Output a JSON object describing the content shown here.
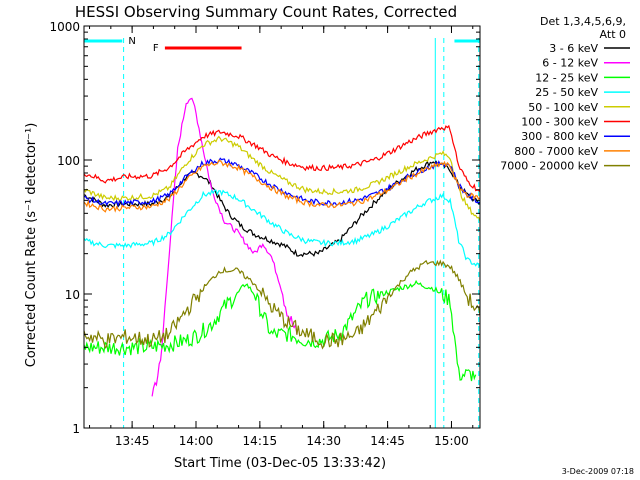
{
  "chart_data": {
    "type": "line",
    "title": "HESSI Observing Summary Count Rates, Corrected",
    "xlabel": "Start Time (03-Dec-05 13:33:42)",
    "ylabel": "Corrected Count Rate (s⁻¹ detector⁻¹)",
    "ylog": true,
    "xlim_minutes": [
      0,
      93
    ],
    "ylim": [
      1,
      1000
    ],
    "xticks": [
      {
        "label": "13:45",
        "minute": 11.3
      },
      {
        "label": "14:00",
        "minute": 26.3
      },
      {
        "label": "14:15",
        "minute": 41.3
      },
      {
        "label": "14:30",
        "minute": 56.3
      },
      {
        "label": "14:45",
        "minute": 71.3
      },
      {
        "label": "15:00",
        "minute": 86.3
      }
    ],
    "yticks": [
      {
        "label": "1",
        "value": 1
      },
      {
        "label": "10",
        "value": 10
      },
      {
        "label": "100",
        "value": 100
      },
      {
        "label": "1000",
        "value": 1000
      }
    ],
    "legend_title": [
      "Det 1,3,4,5,6,9,",
      "Att 0"
    ],
    "legend_position": "right",
    "series": [
      {
        "name": "3 - 6 keV",
        "color": "#000000",
        "points": [
          [
            0,
            55
          ],
          [
            5,
            46
          ],
          [
            10,
            47
          ],
          [
            16,
            47
          ],
          [
            20,
            53
          ],
          [
            24,
            75
          ],
          [
            26,
            80
          ],
          [
            28,
            75
          ],
          [
            30,
            65
          ],
          [
            32,
            50
          ],
          [
            34,
            40
          ],
          [
            37,
            32
          ],
          [
            40,
            28
          ],
          [
            44,
            25
          ],
          [
            47,
            23
          ],
          [
            50,
            20
          ],
          [
            55,
            20
          ],
          [
            60,
            25
          ],
          [
            65,
            38
          ],
          [
            70,
            55
          ],
          [
            74,
            70
          ],
          [
            78,
            85
          ],
          [
            82,
            98
          ],
          [
            86,
            85
          ],
          [
            88,
            65
          ],
          [
            90,
            55
          ],
          [
            93,
            47
          ]
        ]
      },
      {
        "name": "6 - 12 keV",
        "color": "#ff00ff",
        "points": [
          [
            16,
            1.8
          ],
          [
            18,
            3
          ],
          [
            20,
            20
          ],
          [
            22,
            120
          ],
          [
            24,
            270
          ],
          [
            25,
            290
          ],
          [
            26,
            250
          ],
          [
            28,
            120
          ],
          [
            30,
            60
          ],
          [
            33,
            35
          ],
          [
            36,
            29
          ],
          [
            38,
            24
          ],
          [
            40,
            20
          ],
          [
            42,
            24
          ],
          [
            44,
            19
          ],
          [
            46,
            12
          ],
          [
            48,
            7
          ],
          [
            50,
            5
          ]
        ]
      },
      {
        "name": "12 - 25 keV",
        "color": "#00ff00",
        "points": [
          [
            0,
            4
          ],
          [
            5,
            4
          ],
          [
            10,
            4
          ],
          [
            15,
            4
          ],
          [
            20,
            4.2
          ],
          [
            24,
            4.5
          ],
          [
            27,
            5
          ],
          [
            30,
            6
          ],
          [
            33,
            8
          ],
          [
            36,
            10
          ],
          [
            38,
            12
          ],
          [
            40,
            10
          ],
          [
            42,
            7
          ],
          [
            44,
            5
          ],
          [
            48,
            5
          ],
          [
            52,
            4.5
          ],
          [
            56,
            4.5
          ],
          [
            60,
            5
          ],
          [
            62,
            6
          ],
          [
            66,
            9
          ],
          [
            70,
            10
          ],
          [
            74,
            11
          ],
          [
            78,
            12
          ],
          [
            82,
            11
          ],
          [
            86,
            9
          ],
          [
            88,
            2.5
          ],
          [
            92,
            2.5
          ]
        ]
      },
      {
        "name": "25 - 50 keV",
        "color": "#00ffff",
        "points": [
          [
            0,
            25
          ],
          [
            5,
            23
          ],
          [
            10,
            23
          ],
          [
            16,
            24
          ],
          [
            20,
            28
          ],
          [
            24,
            40
          ],
          [
            28,
            55
          ],
          [
            32,
            58
          ],
          [
            36,
            52
          ],
          [
            40,
            42
          ],
          [
            44,
            34
          ],
          [
            48,
            28
          ],
          [
            52,
            25
          ],
          [
            56,
            24
          ],
          [
            60,
            24
          ],
          [
            64,
            25
          ],
          [
            68,
            28
          ],
          [
            72,
            33
          ],
          [
            76,
            40
          ],
          [
            80,
            48
          ],
          [
            84,
            54
          ],
          [
            86,
            50
          ],
          [
            88,
            25
          ],
          [
            90,
            18
          ],
          [
            93,
            16
          ]
        ]
      },
      {
        "name": "50 - 100 keV",
        "color": "#cccc00",
        "points": [
          [
            0,
            60
          ],
          [
            5,
            52
          ],
          [
            10,
            52
          ],
          [
            16,
            54
          ],
          [
            20,
            62
          ],
          [
            24,
            95
          ],
          [
            28,
            130
          ],
          [
            32,
            145
          ],
          [
            36,
            128
          ],
          [
            40,
            100
          ],
          [
            44,
            80
          ],
          [
            48,
            68
          ],
          [
            52,
            60
          ],
          [
            56,
            58
          ],
          [
            60,
            58
          ],
          [
            64,
            60
          ],
          [
            68,
            66
          ],
          [
            72,
            76
          ],
          [
            76,
            88
          ],
          [
            80,
            100
          ],
          [
            84,
            112
          ],
          [
            86,
            105
          ],
          [
            88,
            60
          ],
          [
            90,
            45
          ],
          [
            93,
            35
          ]
        ]
      },
      {
        "name": "100 - 300 keV",
        "color": "#ff0000",
        "points": [
          [
            0,
            80
          ],
          [
            5,
            70
          ],
          [
            10,
            75
          ],
          [
            16,
            76
          ],
          [
            20,
            88
          ],
          [
            24,
            118
          ],
          [
            28,
            150
          ],
          [
            32,
            162
          ],
          [
            36,
            152
          ],
          [
            40,
            130
          ],
          [
            44,
            108
          ],
          [
            48,
            95
          ],
          [
            52,
            88
          ],
          [
            56,
            87
          ],
          [
            60,
            88
          ],
          [
            64,
            92
          ],
          [
            68,
            100
          ],
          [
            72,
            115
          ],
          [
            76,
            135
          ],
          [
            80,
            155
          ],
          [
            84,
            175
          ],
          [
            86,
            172
          ],
          [
            88,
            90
          ],
          [
            90,
            70
          ],
          [
            93,
            58
          ]
        ]
      },
      {
        "name": "300 - 800 keV",
        "color": "#0000ff",
        "points": [
          [
            0,
            52
          ],
          [
            5,
            47
          ],
          [
            10,
            48
          ],
          [
            16,
            49
          ],
          [
            20,
            55
          ],
          [
            24,
            75
          ],
          [
            28,
            95
          ],
          [
            32,
            100
          ],
          [
            36,
            92
          ],
          [
            40,
            78
          ],
          [
            44,
            65
          ],
          [
            48,
            56
          ],
          [
            52,
            50
          ],
          [
            56,
            48
          ],
          [
            60,
            48
          ],
          [
            64,
            50
          ],
          [
            68,
            55
          ],
          [
            72,
            63
          ],
          [
            76,
            75
          ],
          [
            80,
            86
          ],
          [
            84,
            95
          ],
          [
            86,
            92
          ],
          [
            88,
            65
          ],
          [
            90,
            55
          ],
          [
            93,
            48
          ]
        ]
      },
      {
        "name": "800 - 7000 keV",
        "color": "#ff8000",
        "points": [
          [
            0,
            48
          ],
          [
            5,
            43
          ],
          [
            10,
            44
          ],
          [
            16,
            45
          ],
          [
            20,
            51
          ],
          [
            24,
            70
          ],
          [
            28,
            90
          ],
          [
            32,
            96
          ],
          [
            36,
            88
          ],
          [
            40,
            74
          ],
          [
            44,
            62
          ],
          [
            48,
            53
          ],
          [
            52,
            48
          ],
          [
            56,
            46
          ],
          [
            60,
            46
          ],
          [
            64,
            48
          ],
          [
            68,
            53
          ],
          [
            72,
            61
          ],
          [
            76,
            73
          ],
          [
            80,
            84
          ],
          [
            84,
            94
          ],
          [
            86,
            90
          ],
          [
            88,
            63
          ],
          [
            90,
            55
          ],
          [
            93,
            52
          ]
        ]
      },
      {
        "name": "7000 - 20000 keV",
        "color": "#808000",
        "points": [
          [
            0,
            5
          ],
          [
            5,
            4.5
          ],
          [
            10,
            4.8
          ],
          [
            16,
            4.5
          ],
          [
            20,
            5
          ],
          [
            24,
            7.5
          ],
          [
            28,
            11
          ],
          [
            32,
            15
          ],
          [
            36,
            15
          ],
          [
            40,
            12
          ],
          [
            44,
            8
          ],
          [
            48,
            6
          ],
          [
            52,
            5
          ],
          [
            56,
            4.5
          ],
          [
            60,
            4.5
          ],
          [
            64,
            5
          ],
          [
            68,
            7
          ],
          [
            72,
            10
          ],
          [
            76,
            14
          ],
          [
            80,
            17
          ],
          [
            84,
            17
          ],
          [
            86,
            16
          ],
          [
            88,
            13
          ],
          [
            90,
            9.5
          ],
          [
            93,
            7
          ]
        ]
      }
    ],
    "status_bars": [
      {
        "label": "N",
        "color": "#00ffff",
        "start_minute": 0,
        "end_minute": 9
      },
      {
        "label": "",
        "color": "#00ffff",
        "start_minute": 87,
        "end_minute": 93
      },
      {
        "label": "F",
        "color": "#ff0000",
        "start_minute": 19,
        "end_minute": 37
      }
    ],
    "night_boundaries": [
      {
        "minute": 9.3,
        "style": "dashed"
      },
      {
        "minute": 82.5,
        "style": "solid"
      },
      {
        "minute": 84.5,
        "style": "dashed"
      },
      {
        "minute": 92.7,
        "style": "dashed"
      }
    ]
  },
  "timestamp": "3-Dec-2009 07:18"
}
